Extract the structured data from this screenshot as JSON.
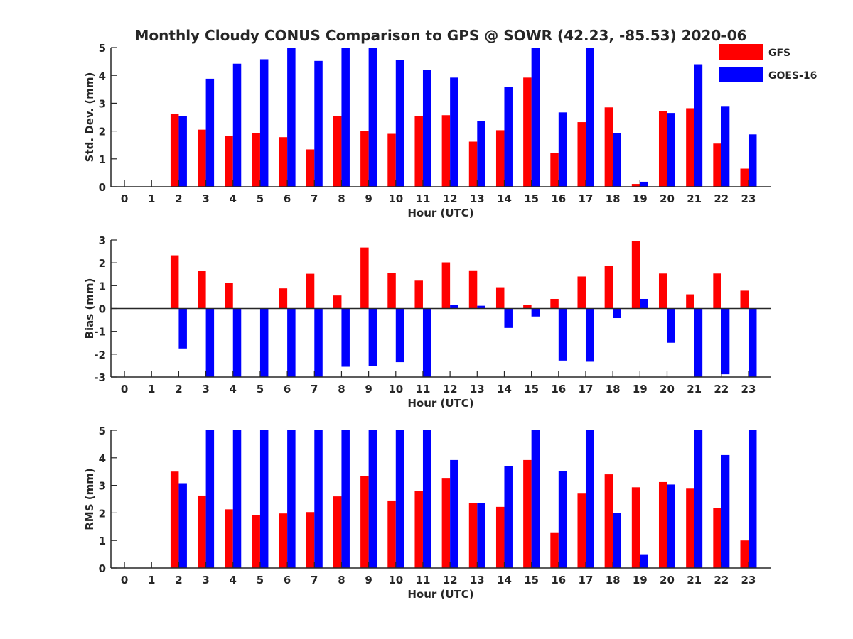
{
  "chart_data": {
    "title": "Monthly Cloudy CONUS Comparison to GPS @ SOWR (42.23, -85.53) 2020-06",
    "legend": [
      {
        "name": "GFS",
        "color": "#ff0000"
      },
      {
        "name": "GOES-16",
        "color": "#0000ff"
      }
    ],
    "legend_placement": "top-right",
    "colors": {
      "GFS": "#ff0000",
      "GOES-16": "#0000ff"
    },
    "panels": [
      {
        "type": "bar",
        "ylabel": "Std. Dev. (mm)",
        "xlabel": "Hour (UTC)",
        "ylim": [
          0,
          5
        ],
        "yticks": [
          0,
          1,
          2,
          3,
          4,
          5
        ],
        "categories": [
          "0",
          "1",
          "2",
          "3",
          "4",
          "5",
          "6",
          "7",
          "8",
          "9",
          "10",
          "11",
          "12",
          "13",
          "14",
          "15",
          "16",
          "17",
          "18",
          "19",
          "20",
          "21",
          "22",
          "23"
        ],
        "series": [
          {
            "name": "GFS",
            "values": [
              null,
              null,
              2.62,
              2.05,
              1.82,
              1.92,
              1.78,
              1.34,
              2.55,
              2.0,
              1.9,
              2.55,
              2.57,
              1.62,
              2.03,
              3.92,
              1.22,
              2.32,
              2.85,
              0.1,
              2.72,
              2.82,
              1.55,
              0.65
            ]
          },
          {
            "name": "GOES-16",
            "values": [
              null,
              null,
              2.55,
              3.88,
              4.42,
              4.58,
              5.0,
              4.52,
              5.0,
              5.0,
              4.55,
              4.2,
              3.92,
              2.37,
              3.58,
              5.0,
              2.67,
              5.0,
              1.93,
              0.18,
              2.65,
              4.4,
              2.9,
              1.88
            ]
          }
        ]
      },
      {
        "type": "bar",
        "ylabel": "Bias (mm)",
        "xlabel": "Hour (UTC)",
        "ylim": [
          -3,
          3
        ],
        "yticks": [
          -3,
          -2,
          -1,
          0,
          1,
          2,
          3
        ],
        "categories": [
          "0",
          "1",
          "2",
          "3",
          "4",
          "5",
          "6",
          "7",
          "8",
          "9",
          "10",
          "11",
          "12",
          "13",
          "14",
          "15",
          "16",
          "17",
          "18",
          "19",
          "20",
          "21",
          "22",
          "23"
        ],
        "series": [
          {
            "name": "GFS",
            "values": [
              null,
              null,
              2.33,
              1.65,
              1.12,
              null,
              0.88,
              1.52,
              0.57,
              2.67,
              1.55,
              1.22,
              2.02,
              1.67,
              0.93,
              0.17,
              0.42,
              1.4,
              1.87,
              2.95,
              1.53,
              0.62,
              1.53,
              0.78
            ]
          },
          {
            "name": "GOES-16",
            "values": [
              null,
              null,
              -1.75,
              -3.0,
              -3.0,
              -3.0,
              -3.0,
              -3.0,
              -2.55,
              -2.52,
              -2.35,
              -3.0,
              0.15,
              0.12,
              -0.85,
              -0.35,
              -2.28,
              -2.33,
              -0.42,
              0.42,
              -1.5,
              -3.0,
              -2.88,
              -3.0
            ]
          }
        ]
      },
      {
        "type": "bar",
        "ylabel": "RMS (mm)",
        "xlabel": "Hour (UTC)",
        "ylim": [
          0,
          5
        ],
        "yticks": [
          0,
          1,
          2,
          3,
          4,
          5
        ],
        "categories": [
          "0",
          "1",
          "2",
          "3",
          "4",
          "5",
          "6",
          "7",
          "8",
          "9",
          "10",
          "11",
          "12",
          "13",
          "14",
          "15",
          "16",
          "17",
          "18",
          "19",
          "20",
          "21",
          "22",
          "23"
        ],
        "series": [
          {
            "name": "GFS",
            "values": [
              null,
              null,
              3.5,
              2.63,
              2.13,
              1.93,
              1.98,
              2.03,
              2.6,
              3.33,
              2.45,
              2.8,
              3.27,
              2.35,
              2.22,
              3.92,
              1.27,
              2.7,
              3.4,
              2.93,
              3.12,
              2.88,
              2.17,
              1.0
            ]
          },
          {
            "name": "GOES-16",
            "values": [
              null,
              null,
              3.08,
              5.0,
              5.0,
              5.0,
              5.0,
              5.0,
              5.0,
              5.0,
              5.0,
              5.0,
              3.92,
              2.35,
              3.7,
              5.0,
              3.53,
              5.0,
              2.0,
              0.5,
              3.03,
              5.0,
              4.1,
              5.0
            ]
          }
        ]
      }
    ]
  }
}
